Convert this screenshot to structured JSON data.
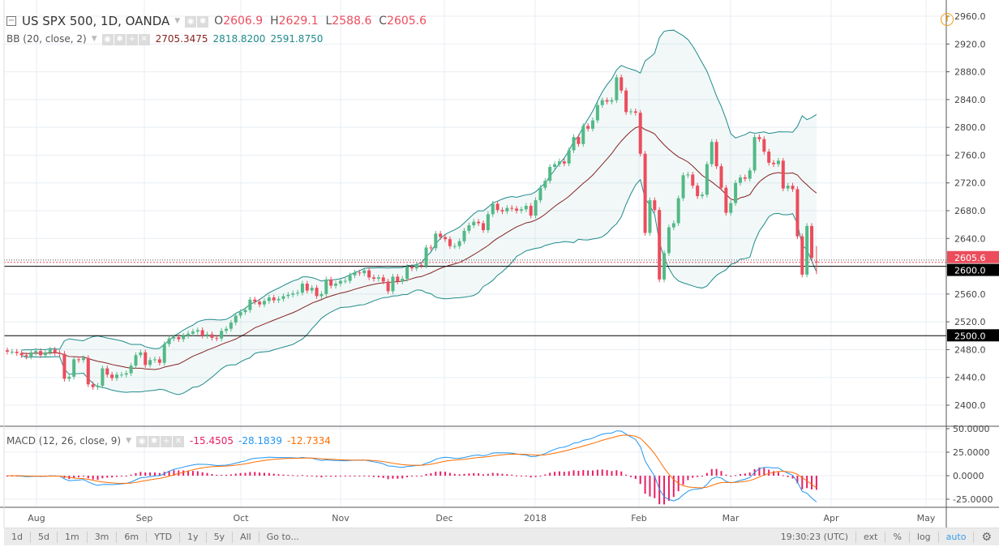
{
  "header": {
    "symbol": "US SPX 500, 1D, OANDA",
    "open_label": "O",
    "open": "2606.9",
    "high_label": "H",
    "high": "2629.1",
    "low_label": "L",
    "low": "2588.6",
    "close_label": "C",
    "close": "2605.6"
  },
  "bb": {
    "label": "BB (20, close, 2)",
    "basis": "2705.3475",
    "upper": "2818.8200",
    "lower": "2591.8750"
  },
  "macd": {
    "label": "MACD (12, 26, close, 9)",
    "hist": "-15.4505",
    "macd": "-28.1839",
    "signal": "-12.7334"
  },
  "toolbar": {
    "ranges": [
      "1d",
      "5d",
      "1m",
      "3m",
      "6m",
      "YTD",
      "1y",
      "5y",
      "All",
      "Go to..."
    ],
    "time": "19:30:23 (UTC)",
    "options": [
      "ext",
      "%",
      "log",
      "auto"
    ]
  },
  "colors": {
    "up": "#53b987",
    "down": "#eb4d5c",
    "bb_band": "#1f8a8a",
    "bb_basis": "#872323",
    "macd": "#2196f3",
    "signal": "#ff6d00",
    "hist": "#e91e63",
    "price_tag": "#eb4d5c"
  },
  "chart_data": {
    "type": "candlestick",
    "interval": "1D",
    "price_axis": {
      "ticks": [
        2400,
        2440,
        2480,
        2520,
        2560,
        2600,
        2640,
        2680,
        2720,
        2760,
        2800,
        2840,
        2880,
        2920,
        2960
      ],
      "range": [
        2400,
        2960
      ]
    },
    "price_lines": [
      {
        "label": "2605.6",
        "value": 2605.6
      },
      {
        "label": "2600.0",
        "value": 2600.0
      },
      {
        "label": "2500.0",
        "value": 2500.0
      }
    ],
    "macd_axis": {
      "ticks": [
        {
          "label": "50.0000",
          "value": 50
        },
        {
          "label": "25.0000",
          "value": 25
        },
        {
          "label": "0.0000",
          "value": 0
        },
        {
          "label": "-25.0000",
          "value": -25
        }
      ]
    },
    "x_ticks": [
      "Aug",
      "Sep",
      "Oct",
      "Nov",
      "Dec",
      "2018",
      "Feb",
      "Mar",
      "Apr",
      "May"
    ],
    "closes": [
      2477,
      2477,
      2475,
      2472,
      2470,
      2476,
      2478,
      2472,
      2476,
      2480,
      2475,
      2474,
      2438,
      2441,
      2466,
      2465,
      2468,
      2430,
      2426,
      2428,
      2453,
      2444,
      2439,
      2444,
      2444,
      2446,
      2457,
      2472,
      2476,
      2458,
      2465,
      2466,
      2461,
      2488,
      2496,
      2498,
      2495,
      2500,
      2503,
      2506,
      2508,
      2500,
      2502,
      2497,
      2496,
      2507,
      2510,
      2519,
      2529,
      2534,
      2537,
      2552,
      2549,
      2545,
      2550,
      2555,
      2551,
      2553,
      2557,
      2559,
      2561,
      2562,
      2575,
      2565,
      2569,
      2557,
      2560,
      2581,
      2572,
      2575,
      2579,
      2579,
      2587,
      2591,
      2590,
      2594,
      2584,
      2582,
      2584,
      2578,
      2564,
      2585,
      2578,
      2582,
      2599,
      2597,
      2602,
      2601,
      2627,
      2626,
      2647,
      2642,
      2639,
      2629,
      2629,
      2636,
      2651,
      2659,
      2664,
      2662,
      2652,
      2675,
      2690,
      2681,
      2679,
      2684,
      2683,
      2680,
      2682,
      2687,
      2673,
      2695,
      2713,
      2723,
      2743,
      2747,
      2751,
      2748,
      2767,
      2786,
      2776,
      2802,
      2798,
      2810,
      2832,
      2839,
      2837,
      2839,
      2872,
      2853,
      2822,
      2823,
      2821,
      2762,
      2648,
      2695,
      2681,
      2581,
      2619,
      2656,
      2662,
      2698,
      2731,
      2732,
      2716,
      2701,
      2703,
      2747,
      2779,
      2744,
      2713,
      2677,
      2691,
      2720,
      2728,
      2726,
      2738,
      2786,
      2783,
      2765,
      2749,
      2747,
      2752,
      2712,
      2716,
      2711,
      2643,
      2588,
      2658,
      2612,
      2605.6
    ],
    "last_bar": {
      "open": 2606.9,
      "high": 2629.1,
      "low": 2588.6,
      "close": 2605.6
    }
  }
}
